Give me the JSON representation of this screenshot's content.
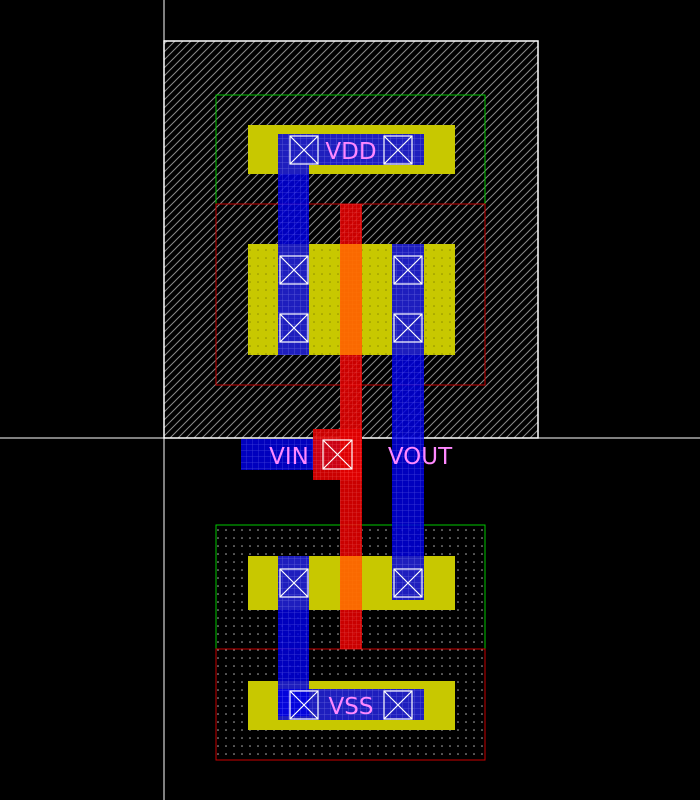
{
  "labels": {
    "vdd": "VDD",
    "vss": "VSS",
    "vin": "VIN",
    "vout": "VOUT"
  },
  "colors": {
    "background": "#000000",
    "axis": "#ffffff",
    "nwell_border": "#ffffff",
    "active": "#c8c800",
    "metal": "#0000ff",
    "poly": "#ff0000",
    "poly_over_active": "#ff7800",
    "pselect": "#00c800",
    "nselect": "#c80000",
    "label": "#ff88ff"
  },
  "layers": {
    "nwell": "nwell-hatch",
    "active": "active",
    "metal1": "metal1",
    "poly": "poly",
    "contact": "contact-x"
  }
}
